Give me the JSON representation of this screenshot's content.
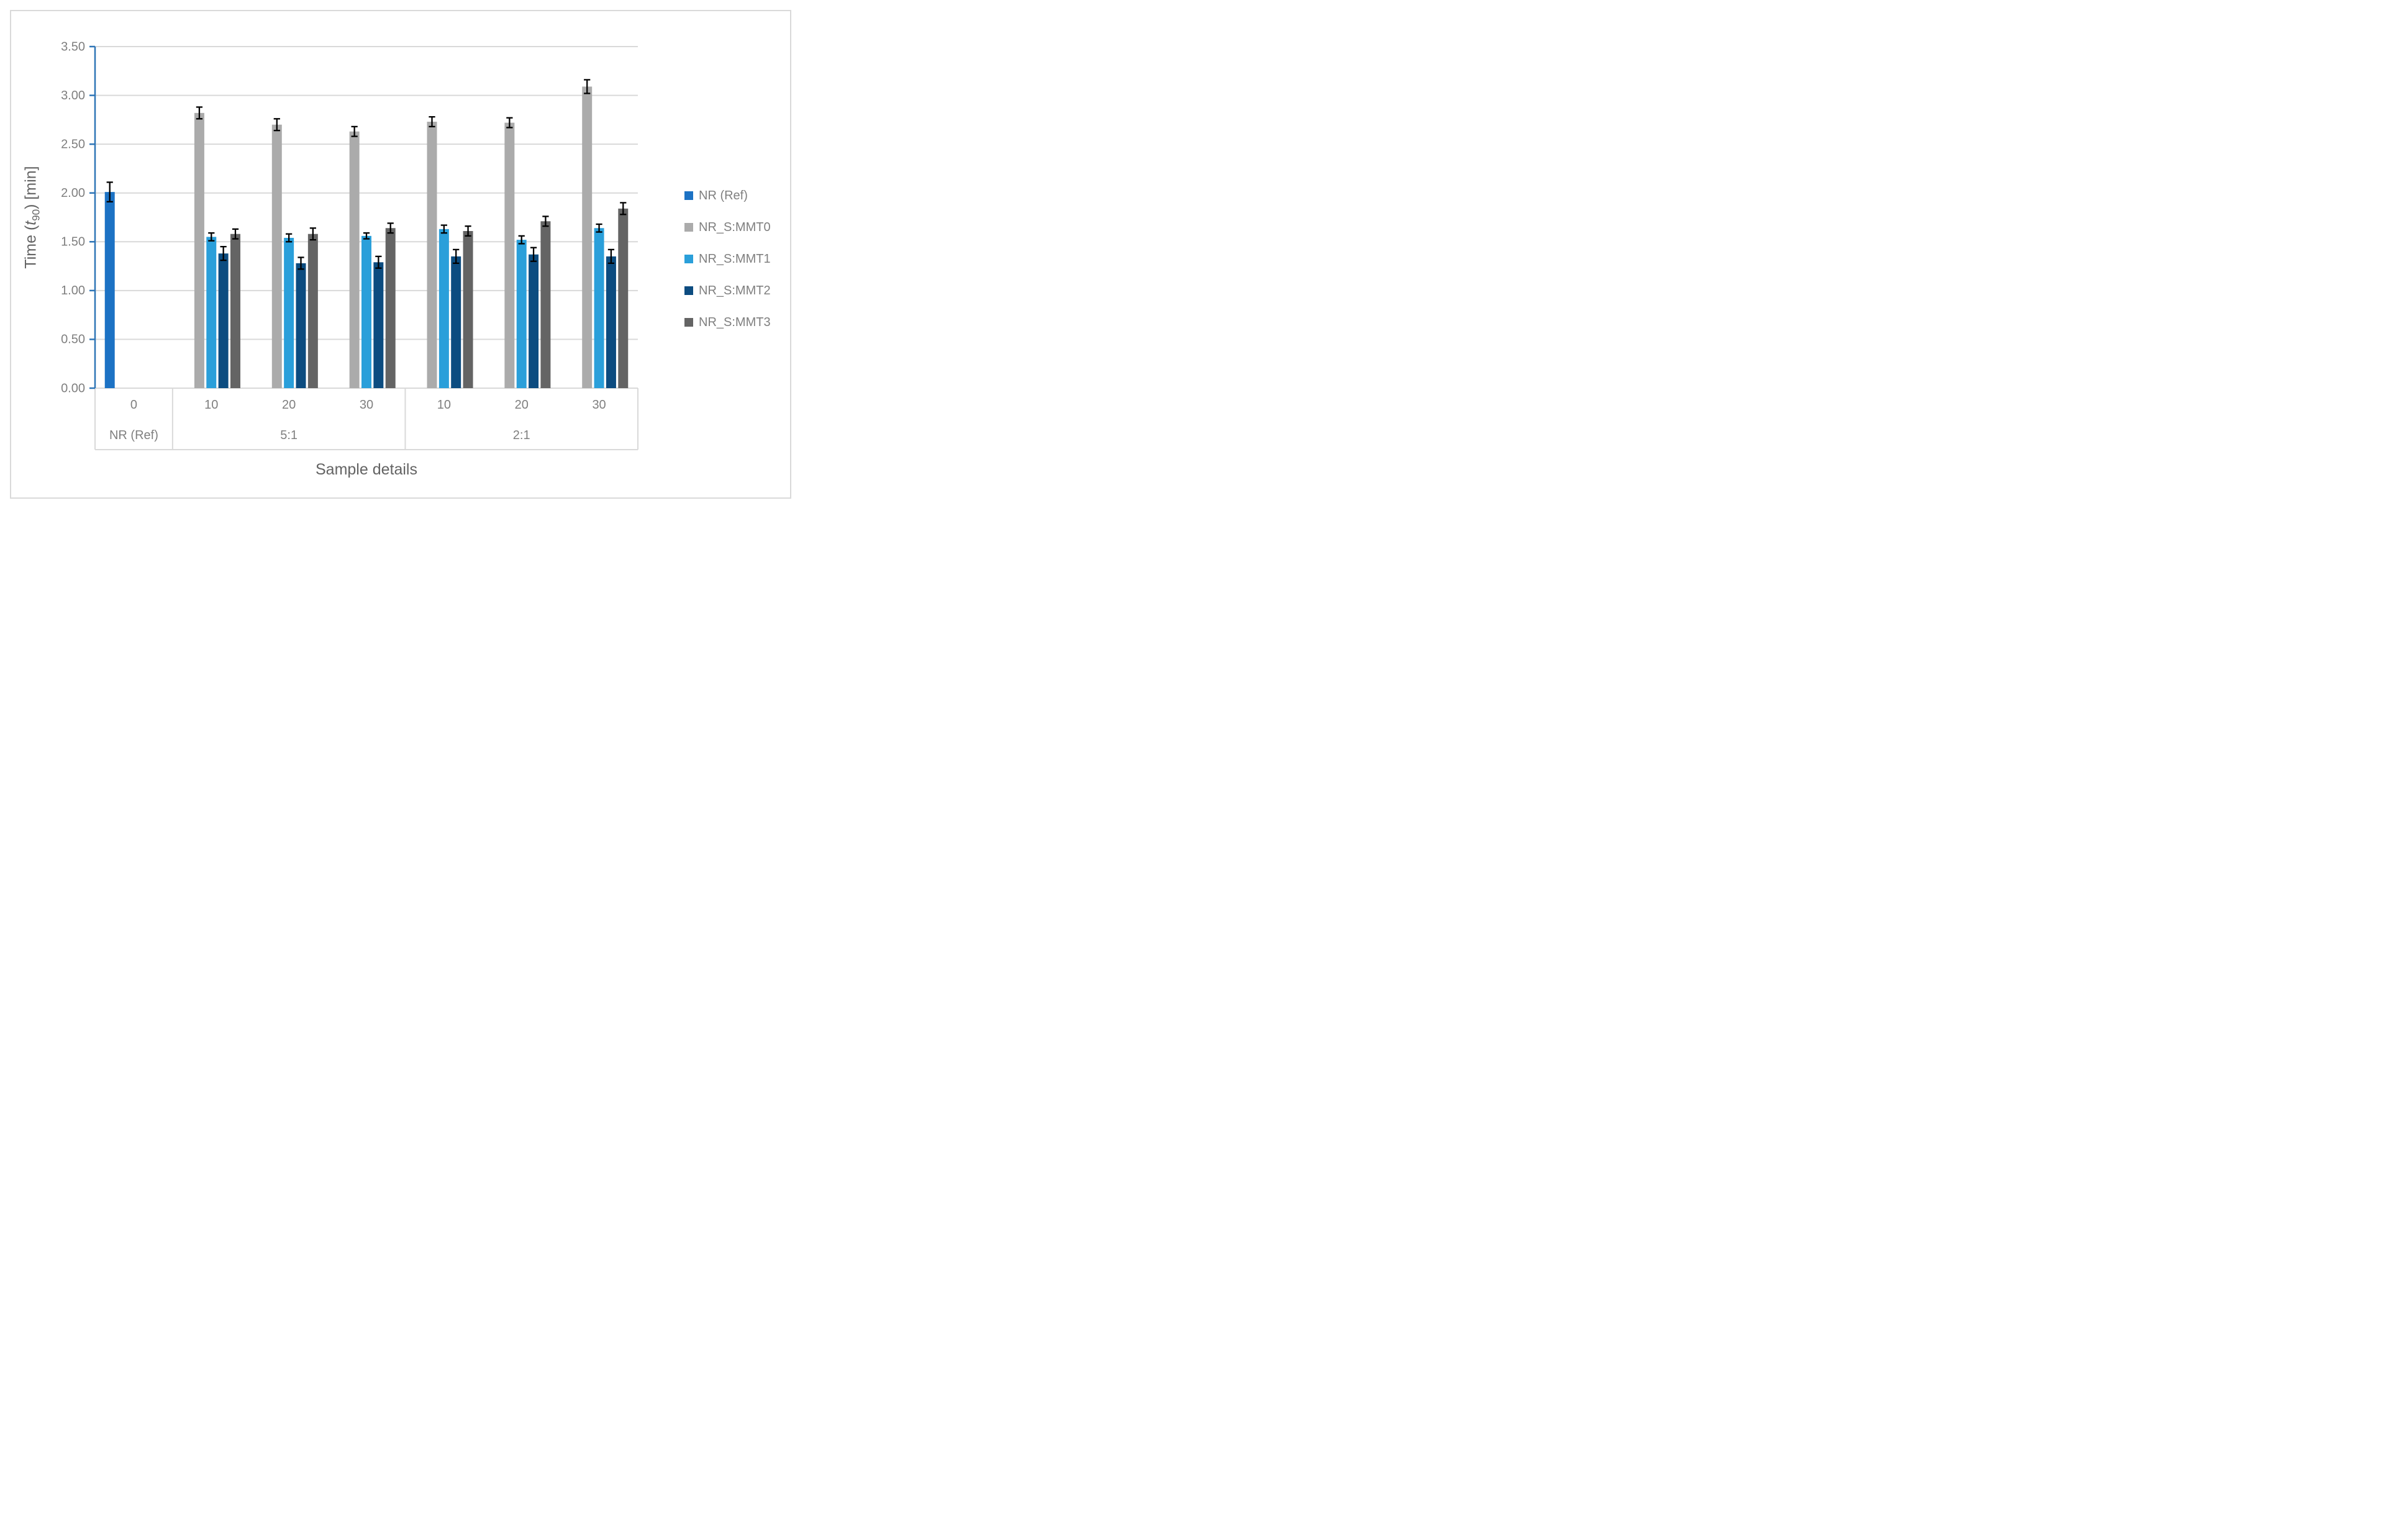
{
  "chart_data": {
    "type": "bar",
    "title": "",
    "xlabel": "Sample details",
    "ylabel": "Time (t90) [min]",
    "ylabel_rich": {
      "pre": "Time (",
      "italic_t": "t",
      "sub": "90",
      "post": ") [min]"
    },
    "ylim": [
      0,
      3.5
    ],
    "ytick_step": 0.5,
    "ytick_labels": [
      "0.00",
      "0.50",
      "1.00",
      "1.50",
      "2.00",
      "2.50",
      "3.00",
      "3.50"
    ],
    "grid": true,
    "legend_position": "right",
    "group_axis": [
      {
        "label": "NR (Ref)",
        "subcategories": [
          "0"
        ]
      },
      {
        "label": "5:1",
        "subcategories": [
          "10",
          "20",
          "30"
        ]
      },
      {
        "label": "2:1",
        "subcategories": [
          "10",
          "20",
          "30"
        ]
      }
    ],
    "series": [
      {
        "name": "NR (Ref)",
        "color": "#1C72C4",
        "values": [
          2.01,
          null,
          null,
          null,
          null,
          null,
          null
        ],
        "errors": [
          0.1,
          null,
          null,
          null,
          null,
          null,
          null
        ]
      },
      {
        "name": "NR_S:MMT0",
        "color": "#ABABAB",
        "values": [
          null,
          2.82,
          2.7,
          2.63,
          2.73,
          2.72,
          3.09
        ],
        "errors": [
          null,
          0.06,
          0.06,
          0.05,
          0.05,
          0.05,
          0.07
        ]
      },
      {
        "name": "NR_S:MMT1",
        "color": "#2A9FDA",
        "values": [
          null,
          1.55,
          1.54,
          1.56,
          1.63,
          1.52,
          1.64
        ],
        "errors": [
          null,
          0.04,
          0.04,
          0.03,
          0.04,
          0.04,
          0.04
        ]
      },
      {
        "name": "NR_S:MMT2",
        "color": "#0C4C80",
        "values": [
          null,
          1.38,
          1.28,
          1.29,
          1.35,
          1.37,
          1.35
        ],
        "errors": [
          null,
          0.07,
          0.06,
          0.06,
          0.07,
          0.07,
          0.07
        ]
      },
      {
        "name": "NR_S:MMT3",
        "color": "#646464",
        "values": [
          null,
          1.58,
          1.58,
          1.64,
          1.61,
          1.71,
          1.84
        ],
        "errors": [
          null,
          0.05,
          0.06,
          0.05,
          0.05,
          0.05,
          0.06
        ]
      }
    ],
    "theme": {
      "gridline": "#D9D9D9",
      "value_axis_line": "#2E75B6",
      "category_lines": "#D9D9D9",
      "error_bar": "#000000",
      "tick_text": "#7F7F7F",
      "title_text": "#636363",
      "figure_border": "#D9D9D9",
      "background": "#FFFFFF"
    }
  }
}
